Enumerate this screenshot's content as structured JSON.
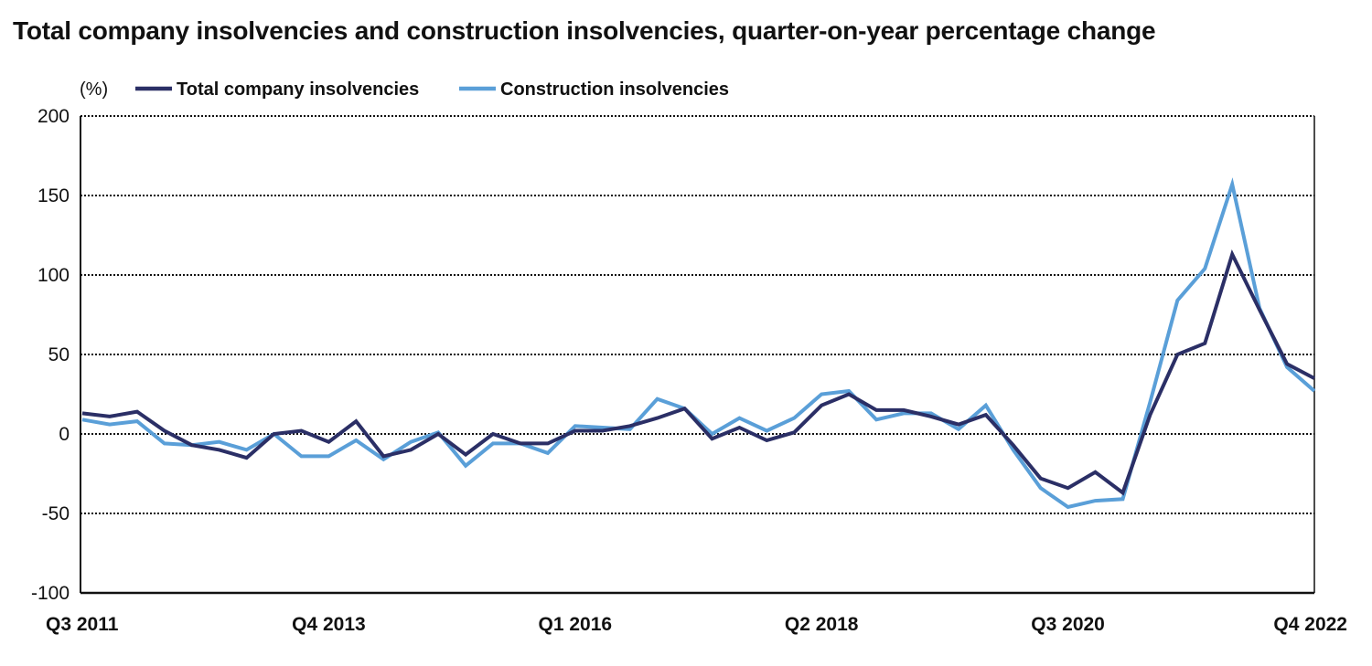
{
  "chart_data": {
    "type": "line",
    "title": "Total company insolvencies and construction insolvencies, quarter-on-year percentage change",
    "ylabel": "(%)",
    "xlabel": "",
    "ylim": [
      -100,
      200
    ],
    "yticks": [
      200,
      150,
      100,
      50,
      0,
      -50,
      -100
    ],
    "grid": true,
    "legend_position": "top-left",
    "x_tick_labels": [
      {
        "index": 0,
        "label": "Q3 2011"
      },
      {
        "index": 9,
        "label": "Q4 2013"
      },
      {
        "index": 18,
        "label": "Q1 2016"
      },
      {
        "index": 27,
        "label": "Q2 2018"
      },
      {
        "index": 36,
        "label": "Q3 2020"
      },
      {
        "index": 45,
        "label": "Q4 2022"
      }
    ],
    "x_start": "Q3 2011",
    "x_end": "Q4 2022",
    "num_points": 46,
    "series": [
      {
        "name": "Total company insolvencies",
        "color": "#2b2f66",
        "values": [
          13,
          11,
          14,
          2,
          -7,
          -10,
          -15,
          0,
          2,
          -5,
          8,
          -14,
          -10,
          0,
          -13,
          0,
          -6,
          -6,
          2,
          2,
          5,
          10,
          16,
          -3,
          4,
          -4,
          1,
          18,
          25,
          15,
          15,
          11,
          6,
          12,
          -7,
          -28,
          -34,
          -24,
          -37,
          12,
          50,
          57,
          113,
          78,
          44,
          35
        ]
      },
      {
        "name": "Construction insolvencies",
        "color": "#5a9fd8",
        "values": [
          9,
          6,
          8,
          -6,
          -7,
          -5,
          -10,
          0,
          -14,
          -14,
          -4,
          -16,
          -5,
          1,
          -20,
          -6,
          -6,
          -12,
          5,
          4,
          3,
          22,
          16,
          0,
          10,
          2,
          10,
          25,
          27,
          9,
          13,
          13,
          3,
          18,
          -10,
          -34,
          -46,
          -42,
          -41,
          20,
          84,
          104,
          157,
          79,
          42,
          27
        ]
      }
    ]
  }
}
